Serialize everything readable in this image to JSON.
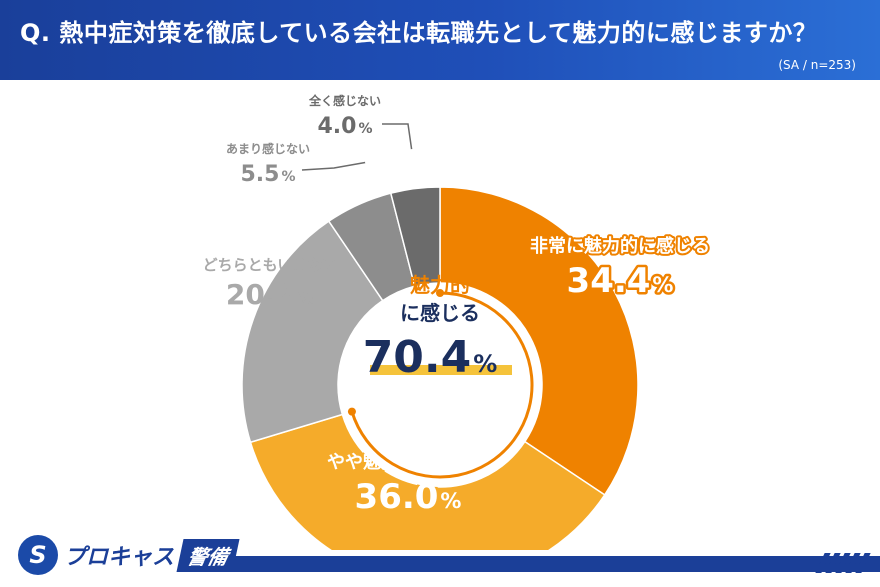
{
  "header": {
    "question": "Q. 熱中症対策を徹底している会社は転職先として魅力的に感じますか？",
    "note": "(SA / n=253)"
  },
  "colors": {
    "header_bg": "#1f4fb8",
    "very": "#ef8200",
    "somewhat": "#f5ab2a",
    "neutral": "#a9a9a9",
    "not_much": "#8d8d8d",
    "not_at_all": "#6b6b6b",
    "center_text": "#1b2f5e",
    "center_accent": "#ef8200"
  },
  "center": {
    "label_line1": "魅力的",
    "label_line2": "に感じる",
    "value": "70.4",
    "unit": "%"
  },
  "footer": {
    "logo_mark": "S",
    "logo_text": "プロキャス",
    "logo_box": "警備"
  },
  "chart_data": {
    "type": "pie",
    "donut": true,
    "categories": [
      "非常に魅力的に感じる",
      "やや魅力的に感じる",
      "どちらともいえない",
      "あまり感じない",
      "全く感じない"
    ],
    "values": [
      34.4,
      36.0,
      20.2,
      5.5,
      4.0
    ],
    "value_labels": [
      "34.4",
      "36.0",
      "20.2",
      "5.5",
      "4.0"
    ],
    "unit": "%",
    "colors": [
      "#ef8200",
      "#f5ab2a",
      "#a9a9a9",
      "#8d8d8d",
      "#6b6b6b"
    ],
    "start": "12 o'clock",
    "direction": "clockwise"
  }
}
